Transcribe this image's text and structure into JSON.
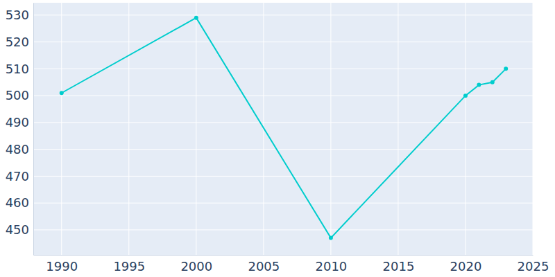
{
  "chart_data": {
    "type": "line",
    "x": [
      1990,
      2000,
      2010,
      2020,
      2021,
      2022,
      2023
    ],
    "values": [
      501,
      529,
      447,
      500,
      504,
      505,
      510
    ],
    "color": "#00cdcd",
    "marker": "circle",
    "xlim": [
      1987.9,
      2025
    ],
    "ylim": [
      440.7,
      534.6
    ],
    "xticks": [
      1990,
      1995,
      2000,
      2005,
      2010,
      2015,
      2020,
      2025
    ],
    "yticks": [
      450,
      460,
      470,
      480,
      490,
      500,
      510,
      520,
      530
    ],
    "grid": true
  }
}
